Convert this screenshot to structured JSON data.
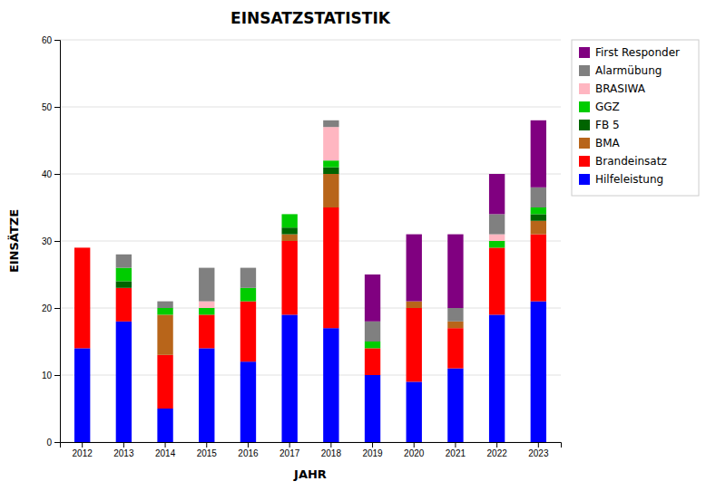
{
  "chart_data": {
    "type": "bar",
    "title": "EINSATZSTATISTIK",
    "x_label": "JAHR",
    "y_label": "EINSÄTZE",
    "categories": [
      "2012",
      "2013",
      "2014",
      "2015",
      "2016",
      "2017",
      "2018",
      "2019",
      "2020",
      "2021",
      "2022",
      "2023"
    ],
    "series": [
      {
        "name": "Hilfeleistung",
        "color": "#0000FF",
        "values": [
          14,
          18,
          5,
          14,
          12,
          19,
          17,
          10,
          9,
          11,
          19,
          21
        ]
      },
      {
        "name": "Brandeinsatz",
        "color": "#FF0000",
        "values": [
          15,
          5,
          8,
          5,
          9,
          11,
          18,
          4,
          11,
          6,
          10,
          10
        ]
      },
      {
        "name": "BMA",
        "color": "#B8651A",
        "values": [
          0,
          0,
          6,
          0,
          0,
          1,
          5,
          0,
          1,
          1,
          0,
          2
        ]
      },
      {
        "name": "FB 5",
        "color": "#006400",
        "values": [
          0,
          1,
          0,
          0,
          0,
          1,
          1,
          0,
          0,
          0,
          0,
          1
        ]
      },
      {
        "name": "GGZ",
        "color": "#00CC00",
        "values": [
          0,
          2,
          1,
          1,
          2,
          2,
          1,
          1,
          0,
          0,
          1,
          1
        ]
      },
      {
        "name": "BRASIWA",
        "color": "#FFB6C1",
        "values": [
          0,
          0,
          0,
          1,
          0,
          0,
          5,
          0,
          0,
          0,
          1,
          0
        ]
      },
      {
        "name": "Alarmübung",
        "color": "#808080",
        "values": [
          0,
          2,
          1,
          5,
          3,
          0,
          1,
          3,
          0,
          2,
          3,
          3
        ]
      },
      {
        "name": "First Responder",
        "color": "#800080",
        "values": [
          0,
          0,
          0,
          0,
          0,
          0,
          0,
          7,
          10,
          11,
          6,
          10
        ]
      }
    ],
    "stacked": true,
    "ylim": [
      0,
      60
    ],
    "yticks": [
      0,
      10,
      20,
      30,
      40,
      50,
      60
    ],
    "grid": true,
    "legend": "upper right"
  }
}
